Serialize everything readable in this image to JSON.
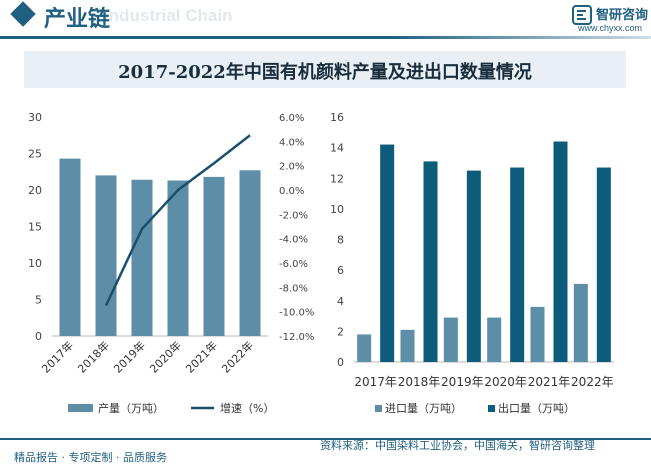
{
  "header": {
    "title": "产业链",
    "watermark": "Industrial Chain",
    "logo_name": "智研咨询",
    "logo_url": "www.chyxx.com"
  },
  "chart_title": "2017-2022年中国有机颜料产量及进出口数量情况",
  "footer": {
    "left": "精品报告 · 专项定制 · 品质服务",
    "source": "资料来源：中国染料工业协会，中国海关，智研咨询整理"
  },
  "colors": {
    "brand": "#1f5f82",
    "bar_light": "#5d8ea7",
    "bar_dark": "#0e5c7c",
    "line": "#1a4f6b"
  },
  "chart_data": [
    {
      "type": "bar+line",
      "categories": [
        "2017年",
        "2018年",
        "2019年",
        "2020年",
        "2021年",
        "2022年"
      ],
      "series": [
        {
          "name": "产量（万吨）",
          "type": "bar",
          "axis": "left",
          "values": [
            24.3,
            22.0,
            21.4,
            21.3,
            21.8,
            22.7
          ]
        },
        {
          "name": "增速（%）",
          "type": "line",
          "axis": "right",
          "values": [
            null,
            -9.5,
            -3.2,
            0.0,
            2.2,
            4.5
          ]
        }
      ],
      "y_left": {
        "min": 0,
        "max": 30,
        "ticks": [
          "0",
          "5",
          "10",
          "15",
          "20",
          "25",
          "30"
        ]
      },
      "y_right": {
        "min": -12,
        "max": 6,
        "ticks": [
          "-12.0%",
          "-10.0%",
          "-8.0%",
          "-6.0%",
          "-4.0%",
          "-2.0%",
          "0.0%",
          "2.0%",
          "4.0%",
          "6.0%"
        ]
      },
      "legend": [
        "产量（万吨）",
        "增速（%）"
      ]
    },
    {
      "type": "bar",
      "categories": [
        "2017年",
        "2018年",
        "2019年",
        "2020年",
        "2021年",
        "2022年"
      ],
      "series": [
        {
          "name": "进口量（万吨）",
          "values": [
            1.8,
            2.1,
            2.9,
            2.9,
            3.6,
            5.1
          ]
        },
        {
          "name": "出口量（万吨）",
          "values": [
            14.2,
            13.1,
            12.5,
            12.7,
            14.4,
            12.7
          ]
        }
      ],
      "y": {
        "min": 0,
        "max": 16,
        "ticks": [
          "0",
          "2",
          "4",
          "6",
          "8",
          "10",
          "12",
          "14",
          "16"
        ]
      },
      "legend": [
        "进口量（万吨）",
        "出口量（万吨）"
      ]
    }
  ]
}
